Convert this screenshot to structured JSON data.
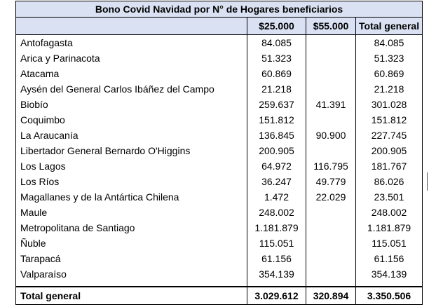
{
  "table": {
    "title": "Bono Covid Navidad por N° de Hogares beneficiarios",
    "headers": [
      "",
      "$25.000",
      "$55.000",
      "Total general"
    ],
    "rows": [
      {
        "region": "Antofagasta",
        "v25": "84.085",
        "v55": "",
        "total": "84.085"
      },
      {
        "region": "Arica y Parinacota",
        "v25": "51.323",
        "v55": "",
        "total": "51.323"
      },
      {
        "region": "Atacama",
        "v25": "60.869",
        "v55": "",
        "total": "60.869"
      },
      {
        "region": "Aysén del General Carlos Ibáñez del Campo",
        "v25": "21.218",
        "v55": "",
        "total": "21.218"
      },
      {
        "region": "Biobío",
        "v25": "259.637",
        "v55": "41.391",
        "total": "301.028"
      },
      {
        "region": "Coquimbo",
        "v25": "151.812",
        "v55": "",
        "total": "151.812"
      },
      {
        "region": "La Araucanía",
        "v25": "136.845",
        "v55": "90.900",
        "total": "227.745"
      },
      {
        "region": "Libertador General Bernardo O'Higgins",
        "v25": "200.905",
        "v55": "",
        "total": "200.905"
      },
      {
        "region": "Los Lagos",
        "v25": "64.972",
        "v55": "116.795",
        "total": "181.767"
      },
      {
        "region": "Los Ríos",
        "v25": "36.247",
        "v55": "49.779",
        "total": "86.026"
      },
      {
        "region": "Magallanes y de la Antártica Chilena",
        "v25": "1.472",
        "v55": "22.029",
        "total": "23.501"
      },
      {
        "region": "Maule",
        "v25": "248.002",
        "v55": "",
        "total": "248.002"
      },
      {
        "region": "Metropolitana de Santiago",
        "v25": "1.181.879",
        "v55": "",
        "total": "1.181.879"
      },
      {
        "region": "Ñuble",
        "v25": "115.051",
        "v55": "",
        "total": "115.051"
      },
      {
        "region": "Tarapacá",
        "v25": "61.156",
        "v55": "",
        "total": "61.156"
      },
      {
        "region": "Valparaíso",
        "v25": "354.139",
        "v55": "",
        "total": "354.139"
      }
    ],
    "total": {
      "region": "Total general",
      "v25": "3.029.612",
      "v55": "320.894",
      "total": "3.350.506"
    }
  }
}
